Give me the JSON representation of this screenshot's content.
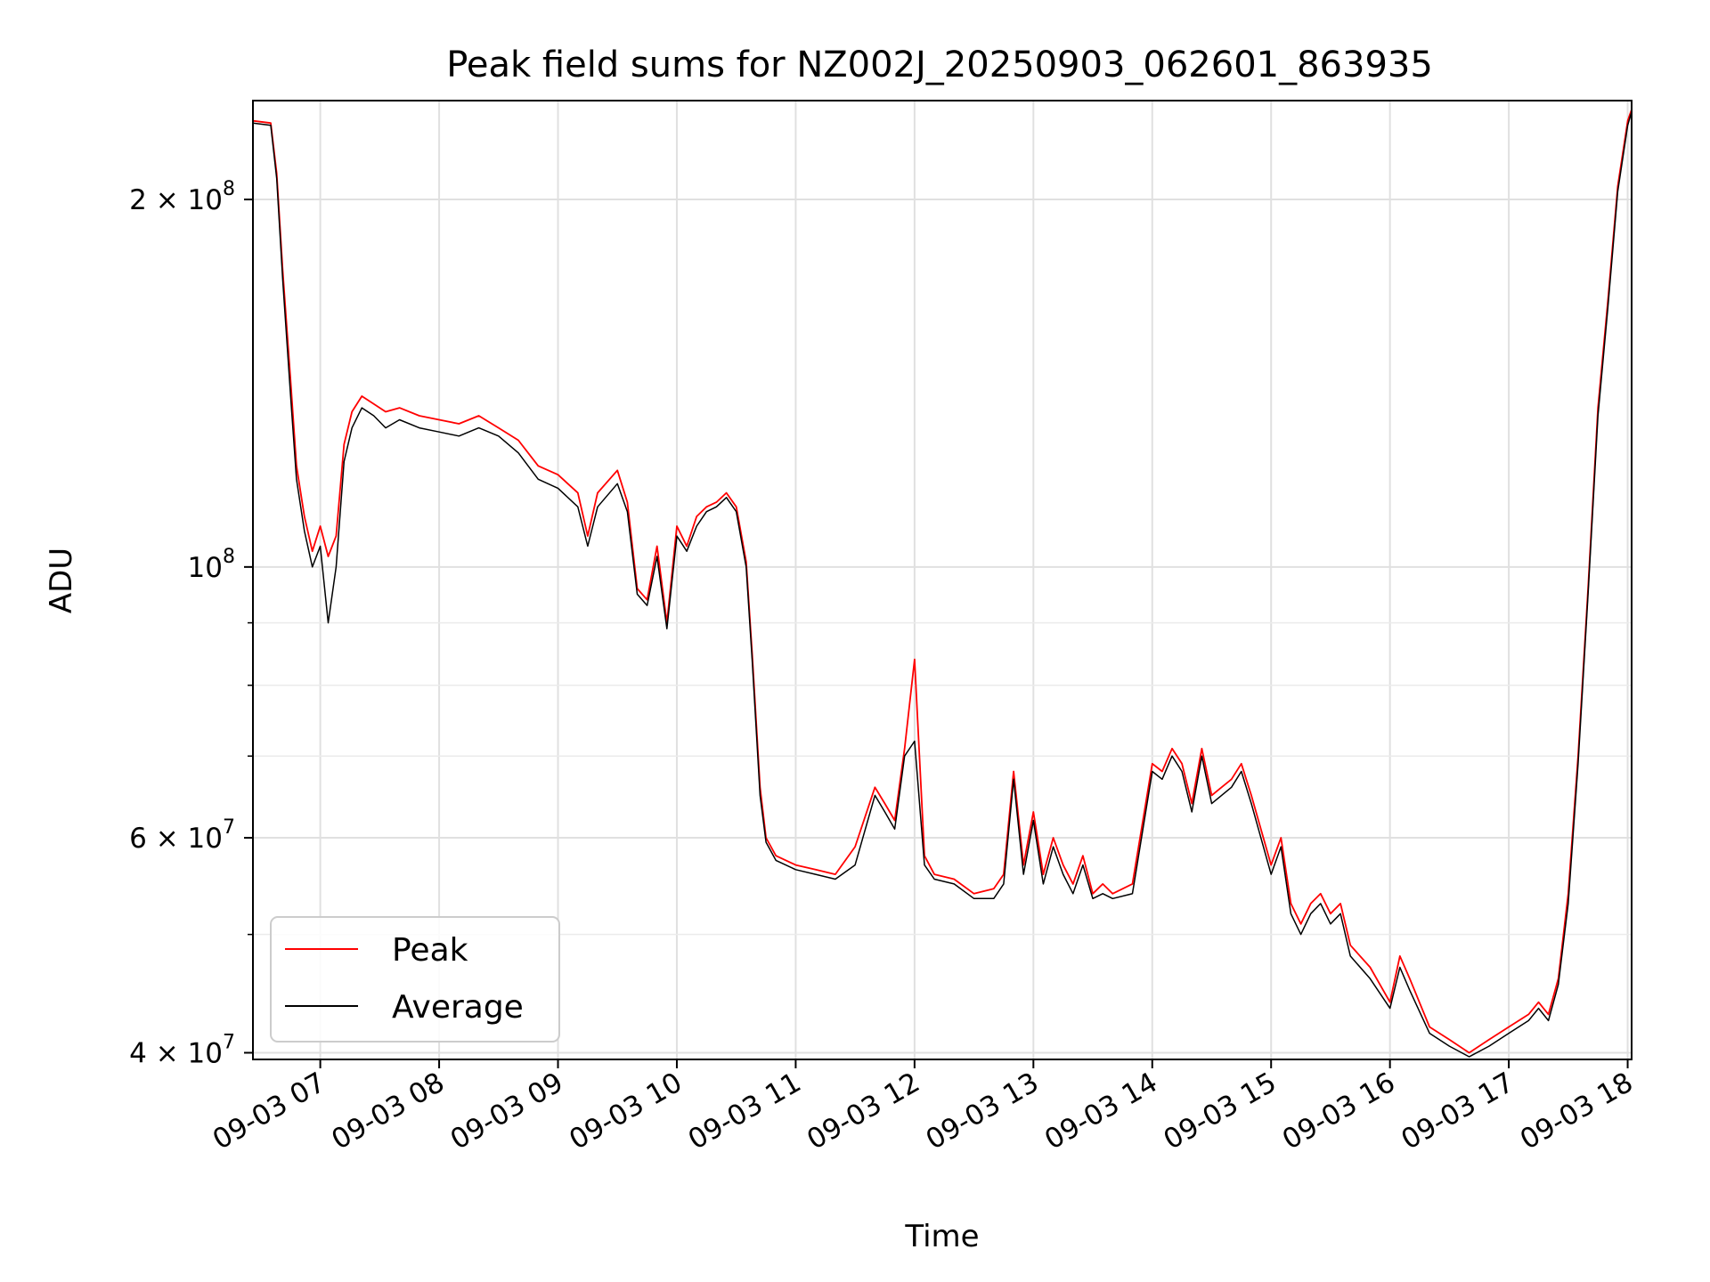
{
  "chart_data": {
    "type": "line",
    "title": "Peak field sums for NZ002J_20250903_062601_863935",
    "xlabel": "Time",
    "ylabel": "ADU",
    "xscale": "time",
    "yscale": "log",
    "x_range": [
      "2025-09-03 06:26",
      "2025-09-03 18:02"
    ],
    "ylim": [
      39500000,
      241000000
    ],
    "grid": true,
    "legend_position": "lower-left",
    "x_ticks": [
      {
        "value": "2025-09-03 07:00",
        "label": "09-03 07"
      },
      {
        "value": "2025-09-03 08:00",
        "label": "09-03 08"
      },
      {
        "value": "2025-09-03 09:00",
        "label": "09-03 09"
      },
      {
        "value": "2025-09-03 10:00",
        "label": "09-03 10"
      },
      {
        "value": "2025-09-03 11:00",
        "label": "09-03 11"
      },
      {
        "value": "2025-09-03 12:00",
        "label": "09-03 12"
      },
      {
        "value": "2025-09-03 13:00",
        "label": "09-03 13"
      },
      {
        "value": "2025-09-03 14:00",
        "label": "09-03 14"
      },
      {
        "value": "2025-09-03 15:00",
        "label": "09-03 15"
      },
      {
        "value": "2025-09-03 16:00",
        "label": "09-03 16"
      },
      {
        "value": "2025-09-03 17:00",
        "label": "09-03 17"
      },
      {
        "value": "2025-09-03 18:00",
        "label": "09-03 18"
      }
    ],
    "y_major_ticks": [
      {
        "value": 40000000,
        "mantissa": "4",
        "exponent": "7"
      },
      {
        "value": 60000000,
        "mantissa": "6",
        "exponent": "7"
      },
      {
        "value": 100000000,
        "mantissa": "",
        "exponent": "8"
      },
      {
        "value": 200000000,
        "mantissa": "2",
        "exponent": "8"
      }
    ],
    "y_minor_ticks": [
      50000000,
      70000000,
      80000000,
      90000000
    ],
    "series": [
      {
        "name": "Peak",
        "color": "#ff0000",
        "x": [
          "2025-09-03 06:26",
          "2025-09-03 06:35",
          "2025-09-03 06:38",
          "2025-09-03 06:41",
          "2025-09-03 06:45",
          "2025-09-03 06:48",
          "2025-09-03 06:52",
          "2025-09-03 06:56",
          "2025-09-03 07:00",
          "2025-09-03 07:04",
          "2025-09-03 07:08",
          "2025-09-03 07:12",
          "2025-09-03 07:16",
          "2025-09-03 07:21",
          "2025-09-03 07:27",
          "2025-09-03 07:33",
          "2025-09-03 07:40",
          "2025-09-03 07:50",
          "2025-09-03 08:00",
          "2025-09-03 08:10",
          "2025-09-03 08:20",
          "2025-09-03 08:30",
          "2025-09-03 08:40",
          "2025-09-03 08:50",
          "2025-09-03 09:00",
          "2025-09-03 09:10",
          "2025-09-03 09:15",
          "2025-09-03 09:20",
          "2025-09-03 09:30",
          "2025-09-03 09:35",
          "2025-09-03 09:40",
          "2025-09-03 09:45",
          "2025-09-03 09:50",
          "2025-09-03 09:55",
          "2025-09-03 10:00",
          "2025-09-03 10:05",
          "2025-09-03 10:10",
          "2025-09-03 10:15",
          "2025-09-03 10:20",
          "2025-09-03 10:25",
          "2025-09-03 10:30",
          "2025-09-03 10:35",
          "2025-09-03 10:38",
          "2025-09-03 10:42",
          "2025-09-03 10:45",
          "2025-09-03 10:50",
          "2025-09-03 11:00",
          "2025-09-03 11:10",
          "2025-09-03 11:20",
          "2025-09-03 11:30",
          "2025-09-03 11:40",
          "2025-09-03 11:45",
          "2025-09-03 11:50",
          "2025-09-03 11:55",
          "2025-09-03 12:00",
          "2025-09-03 12:05",
          "2025-09-03 12:10",
          "2025-09-03 12:20",
          "2025-09-03 12:30",
          "2025-09-03 12:40",
          "2025-09-03 12:45",
          "2025-09-03 12:50",
          "2025-09-03 12:55",
          "2025-09-03 13:00",
          "2025-09-03 13:05",
          "2025-09-03 13:10",
          "2025-09-03 13:15",
          "2025-09-03 13:20",
          "2025-09-03 13:25",
          "2025-09-03 13:30",
          "2025-09-03 13:35",
          "2025-09-03 13:40",
          "2025-09-03 13:50",
          "2025-09-03 14:00",
          "2025-09-03 14:05",
          "2025-09-03 14:10",
          "2025-09-03 14:15",
          "2025-09-03 14:20",
          "2025-09-03 14:25",
          "2025-09-03 14:30",
          "2025-09-03 14:35",
          "2025-09-03 14:40",
          "2025-09-03 14:45",
          "2025-09-03 14:50",
          "2025-09-03 15:00",
          "2025-09-03 15:05",
          "2025-09-03 15:10",
          "2025-09-03 15:15",
          "2025-09-03 15:20",
          "2025-09-03 15:25",
          "2025-09-03 15:30",
          "2025-09-03 15:35",
          "2025-09-03 15:40",
          "2025-09-03 15:50",
          "2025-09-03 16:00",
          "2025-09-03 16:05",
          "2025-09-03 16:10",
          "2025-09-03 16:20",
          "2025-09-03 16:30",
          "2025-09-03 16:40",
          "2025-09-03 16:50",
          "2025-09-03 17:00",
          "2025-09-03 17:10",
          "2025-09-03 17:15",
          "2025-09-03 17:20",
          "2025-09-03 17:25",
          "2025-09-03 17:30",
          "2025-09-03 17:35",
          "2025-09-03 17:40",
          "2025-09-03 17:45",
          "2025-09-03 17:50",
          "2025-09-03 17:55",
          "2025-09-03 18:00",
          "2025-09-03 18:02"
        ],
        "values": [
          232000000,
          231000000,
          210000000,
          175000000,
          142000000,
          121000000,
          110000000,
          103000000,
          108000000,
          102000000,
          106000000,
          126000000,
          134000000,
          138000000,
          136000000,
          134000000,
          135000000,
          133000000,
          132000000,
          131000000,
          133000000,
          130000000,
          127000000,
          121000000,
          119000000,
          115000000,
          106000000,
          115000000,
          120000000,
          113000000,
          96000000,
          94000000,
          104000000,
          90000000,
          108000000,
          104000000,
          110000000,
          112000000,
          113000000,
          115000000,
          112000000,
          101000000,
          85000000,
          66000000,
          60000000,
          58000000,
          57000000,
          56500000,
          56000000,
          59000000,
          66000000,
          64000000,
          62000000,
          71000000,
          84000000,
          58000000,
          56000000,
          55500000,
          54000000,
          54500000,
          56000000,
          68000000,
          57000000,
          63000000,
          56000000,
          60000000,
          57000000,
          55000000,
          58000000,
          54000000,
          55000000,
          54000000,
          55000000,
          69000000,
          68000000,
          71000000,
          69000000,
          64000000,
          71000000,
          65000000,
          66000000,
          67000000,
          69000000,
          65000000,
          57000000,
          60000000,
          53000000,
          51000000,
          53000000,
          54000000,
          52000000,
          53000000,
          49000000,
          47000000,
          44000000,
          48000000,
          46000000,
          42000000,
          41000000,
          40000000,
          41000000,
          42000000,
          43000000,
          44000000,
          43000000,
          46000000,
          54000000,
          70000000,
          96000000,
          135000000,
          165000000,
          205000000,
          232000000,
          237000000
        ]
      },
      {
        "name": "Average",
        "color": "#000000",
        "x": [
          "2025-09-03 06:26",
          "2025-09-03 06:35",
          "2025-09-03 06:38",
          "2025-09-03 06:41",
          "2025-09-03 06:45",
          "2025-09-03 06:48",
          "2025-09-03 06:52",
          "2025-09-03 06:56",
          "2025-09-03 07:00",
          "2025-09-03 07:04",
          "2025-09-03 07:08",
          "2025-09-03 07:12",
          "2025-09-03 07:16",
          "2025-09-03 07:21",
          "2025-09-03 07:27",
          "2025-09-03 07:33",
          "2025-09-03 07:40",
          "2025-09-03 07:50",
          "2025-09-03 08:00",
          "2025-09-03 08:10",
          "2025-09-03 08:20",
          "2025-09-03 08:30",
          "2025-09-03 08:40",
          "2025-09-03 08:50",
          "2025-09-03 09:00",
          "2025-09-03 09:10",
          "2025-09-03 09:15",
          "2025-09-03 09:20",
          "2025-09-03 09:30",
          "2025-09-03 09:35",
          "2025-09-03 09:40",
          "2025-09-03 09:45",
          "2025-09-03 09:50",
          "2025-09-03 09:55",
          "2025-09-03 10:00",
          "2025-09-03 10:05",
          "2025-09-03 10:10",
          "2025-09-03 10:15",
          "2025-09-03 10:20",
          "2025-09-03 10:25",
          "2025-09-03 10:30",
          "2025-09-03 10:35",
          "2025-09-03 10:38",
          "2025-09-03 10:42",
          "2025-09-03 10:45",
          "2025-09-03 10:50",
          "2025-09-03 11:00",
          "2025-09-03 11:10",
          "2025-09-03 11:20",
          "2025-09-03 11:30",
          "2025-09-03 11:40",
          "2025-09-03 11:45",
          "2025-09-03 11:50",
          "2025-09-03 11:55",
          "2025-09-03 12:00",
          "2025-09-03 12:05",
          "2025-09-03 12:10",
          "2025-09-03 12:20",
          "2025-09-03 12:30",
          "2025-09-03 12:40",
          "2025-09-03 12:45",
          "2025-09-03 12:50",
          "2025-09-03 12:55",
          "2025-09-03 13:00",
          "2025-09-03 13:05",
          "2025-09-03 13:10",
          "2025-09-03 13:15",
          "2025-09-03 13:20",
          "2025-09-03 13:25",
          "2025-09-03 13:30",
          "2025-09-03 13:35",
          "2025-09-03 13:40",
          "2025-09-03 13:50",
          "2025-09-03 14:00",
          "2025-09-03 14:05",
          "2025-09-03 14:10",
          "2025-09-03 14:15",
          "2025-09-03 14:20",
          "2025-09-03 14:25",
          "2025-09-03 14:30",
          "2025-09-03 14:35",
          "2025-09-03 14:40",
          "2025-09-03 14:45",
          "2025-09-03 14:50",
          "2025-09-03 15:00",
          "2025-09-03 15:05",
          "2025-09-03 15:10",
          "2025-09-03 15:15",
          "2025-09-03 15:20",
          "2025-09-03 15:25",
          "2025-09-03 15:30",
          "2025-09-03 15:35",
          "2025-09-03 15:40",
          "2025-09-03 15:50",
          "2025-09-03 16:00",
          "2025-09-03 16:05",
          "2025-09-03 16:10",
          "2025-09-03 16:20",
          "2025-09-03 16:30",
          "2025-09-03 16:40",
          "2025-09-03 16:50",
          "2025-09-03 17:00",
          "2025-09-03 17:10",
          "2025-09-03 17:15",
          "2025-09-03 17:20",
          "2025-09-03 17:25",
          "2025-09-03 17:30",
          "2025-09-03 17:35",
          "2025-09-03 17:40",
          "2025-09-03 17:45",
          "2025-09-03 17:50",
          "2025-09-03 17:55",
          "2025-09-03 18:00",
          "2025-09-03 18:02"
        ],
        "values": [
          231000000,
          230000000,
          208000000,
          172000000,
          138000000,
          118000000,
          107000000,
          100000000,
          104000000,
          90000000,
          100000000,
          122000000,
          130000000,
          135000000,
          133000000,
          130000000,
          132000000,
          130000000,
          129000000,
          128000000,
          130000000,
          128000000,
          124000000,
          118000000,
          116000000,
          112000000,
          104000000,
          112000000,
          117000000,
          111000000,
          95000000,
          93000000,
          102000000,
          89000000,
          106000000,
          103000000,
          108000000,
          111000000,
          112000000,
          114000000,
          111000000,
          100000000,
          84000000,
          65000000,
          59500000,
          57500000,
          56500000,
          56000000,
          55500000,
          57000000,
          65000000,
          63000000,
          61000000,
          70000000,
          72000000,
          57000000,
          55500000,
          55000000,
          53500000,
          53500000,
          55000000,
          67000000,
          56000000,
          62000000,
          55000000,
          59000000,
          56000000,
          54000000,
          57000000,
          53500000,
          54000000,
          53500000,
          54000000,
          68000000,
          67000000,
          70000000,
          68000000,
          63000000,
          70000000,
          64000000,
          65000000,
          66000000,
          68000000,
          64000000,
          56000000,
          59000000,
          52000000,
          50000000,
          52000000,
          53000000,
          51000000,
          52000000,
          48000000,
          46000000,
          43500000,
          47000000,
          45000000,
          41500000,
          40500000,
          39700000,
          40500000,
          41500000,
          42500000,
          43500000,
          42500000,
          45500000,
          53000000,
          69000000,
          95000000,
          133000000,
          163000000,
          203000000,
          230000000,
          236000000
        ]
      }
    ]
  }
}
